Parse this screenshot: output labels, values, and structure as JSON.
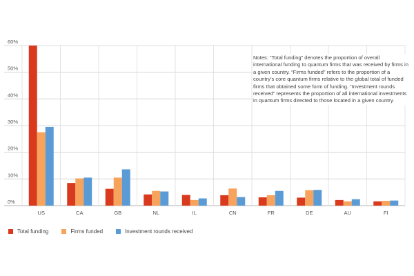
{
  "chart_data": {
    "type": "bar",
    "title": "",
    "xlabel": "",
    "ylabel": "",
    "ylim": [
      0,
      60
    ],
    "yticks": [
      0,
      10,
      20,
      30,
      40,
      50,
      60
    ],
    "yticklabels": [
      "0%",
      "10%",
      "20%",
      "30%",
      "40%",
      "50%",
      "60%"
    ],
    "categories": [
      "US",
      "CA",
      "GB",
      "NL",
      "IL",
      "CN",
      "FR",
      "DE",
      "AU",
      "FI"
    ],
    "series": [
      {
        "name": "Total funding",
        "color": "#d93a1e",
        "values": [
          60,
          8.5,
          6.3,
          4.2,
          4.0,
          3.9,
          3.1,
          3.0,
          2.1,
          1.6
        ]
      },
      {
        "name": "Firms funded",
        "color": "#f7a35c",
        "values": [
          27.5,
          10.2,
          10.5,
          5.5,
          2.1,
          6.4,
          3.9,
          5.8,
          1.6,
          1.8
        ]
      },
      {
        "name": "Investment rounds received",
        "color": "#5b9bd5",
        "values": [
          29.5,
          10.5,
          13.6,
          5.3,
          2.7,
          3.2,
          5.5,
          5.9,
          2.4,
          1.9
        ]
      }
    ],
    "grid": true,
    "legend": "bottom-left",
    "annotation": "Notes: “Total funding” denotes the proportion of overall international funding to quantum firms that was received by firms in a given country. “Firms funded” refers to the proportion of a country’s core quantum firms relative to the global total of funded firms that obtained some form of funding. “Investment rounds received” represents the proportion of all international investments in quantum firms directed to those located in a given country."
  }
}
